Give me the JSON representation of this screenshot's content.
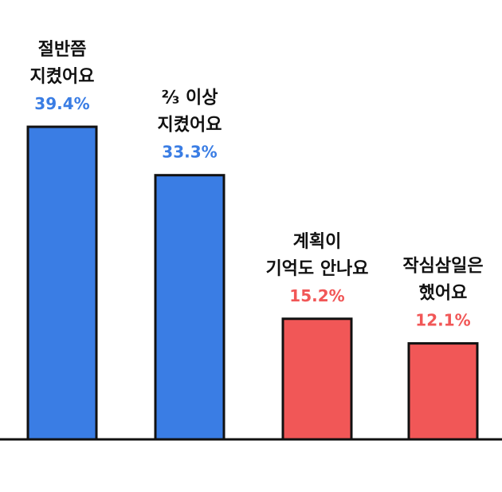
{
  "chart_data": {
    "type": "bar",
    "categories": [
      [
        "절반쯤",
        "지켰어요"
      ],
      [
        "⅔ 이상",
        "지켰어요"
      ],
      [
        "계획이",
        "기억도 안나요"
      ],
      [
        "작심삼일은",
        "했어요"
      ]
    ],
    "values": [
      39.4,
      33.3,
      15.2,
      12.1
    ],
    "value_labels": [
      "39.4%",
      "33.3%",
      "15.2%",
      "12.1%"
    ],
    "bar_colors": [
      "#3a7de4",
      "#3a7de4",
      "#f15757",
      "#f15757"
    ],
    "label_colors": [
      "#3a7de4",
      "#3a7de4",
      "#f15757",
      "#f15757"
    ],
    "ylim": [
      0,
      39.4
    ],
    "grid": false,
    "legend": "none"
  }
}
